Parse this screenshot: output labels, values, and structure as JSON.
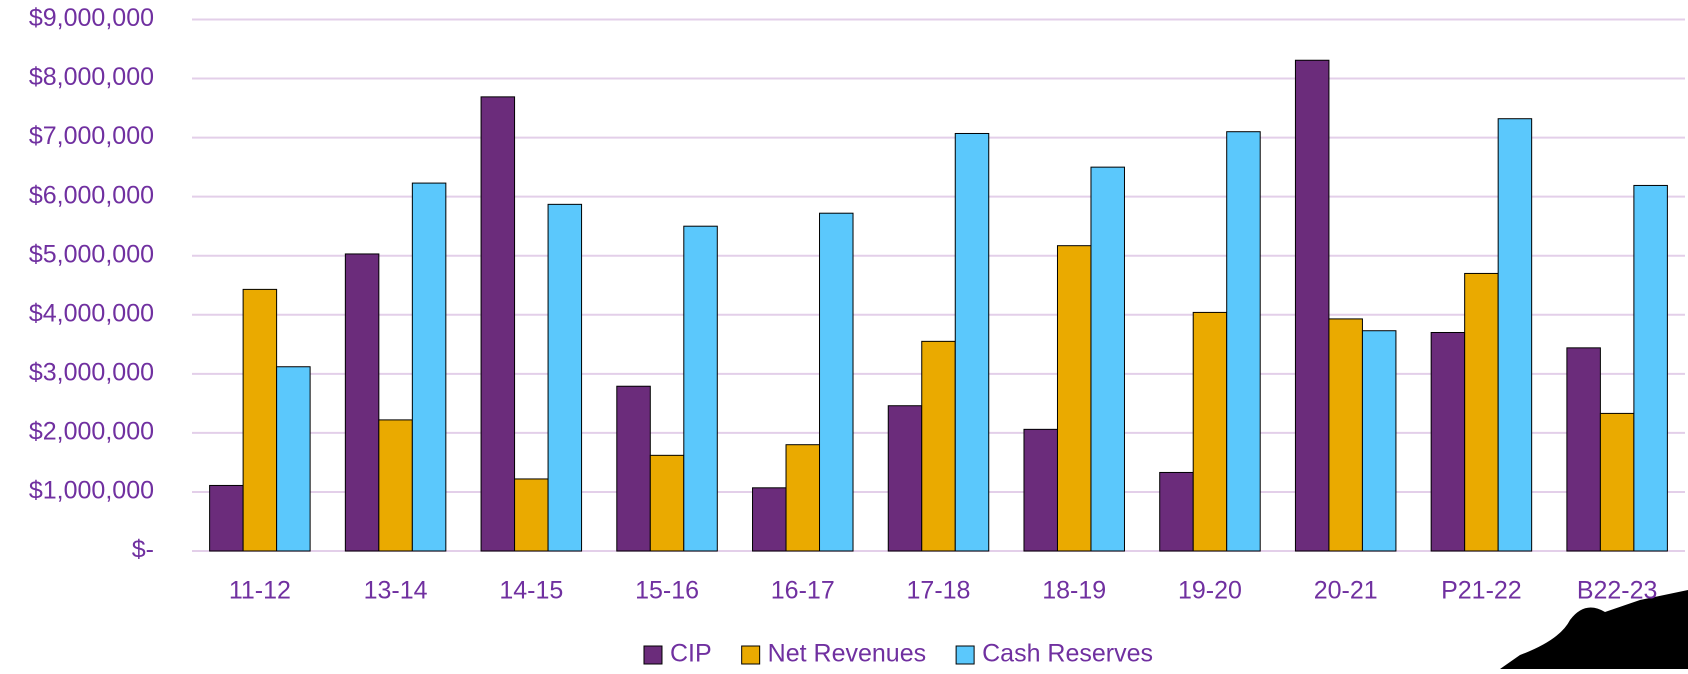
{
  "chart_data": {
    "type": "bar",
    "categories": [
      "11-12",
      "13-14",
      "14-15",
      "15-16",
      "16-17",
      "17-18",
      "18-19",
      "19-20",
      "20-21",
      "P21-22",
      "B22-23"
    ],
    "series": [
      {
        "name": "CIP",
        "color": "#6b2c7b",
        "values": [
          1110000,
          5030000,
          7690000,
          2790000,
          1070000,
          2460000,
          2060000,
          1330000,
          8310000,
          3700000,
          3440000
        ]
      },
      {
        "name": "Net Revenues",
        "color": "#eaaa00",
        "values": [
          4430000,
          2220000,
          1220000,
          1620000,
          1800000,
          3550000,
          5170000,
          4040000,
          3930000,
          4700000,
          2330000
        ]
      },
      {
        "name": "Cash Reserves",
        "color": "#5bc8fc",
        "values": [
          3120000,
          6230000,
          5870000,
          5500000,
          5720000,
          7070000,
          6500000,
          7100000,
          3730000,
          7320000,
          6190000
        ]
      }
    ],
    "ylim": [
      0,
      9000000
    ],
    "yticks": [
      {
        "value": 0,
        "label": "$-"
      },
      {
        "value": 1000000,
        "label": "$1,000,000"
      },
      {
        "value": 2000000,
        "label": "$2,000,000"
      },
      {
        "value": 3000000,
        "label": "$3,000,000"
      },
      {
        "value": 4000000,
        "label": "$4,000,000"
      },
      {
        "value": 5000000,
        "label": "$5,000,000"
      },
      {
        "value": 6000000,
        "label": "$6,000,000"
      },
      {
        "value": 7000000,
        "label": "$7,000,000"
      },
      {
        "value": 8000000,
        "label": "$8,000,000"
      },
      {
        "value": 9000000,
        "label": "$9,000,000"
      }
    ],
    "grid": true,
    "legend": "bottom"
  }
}
